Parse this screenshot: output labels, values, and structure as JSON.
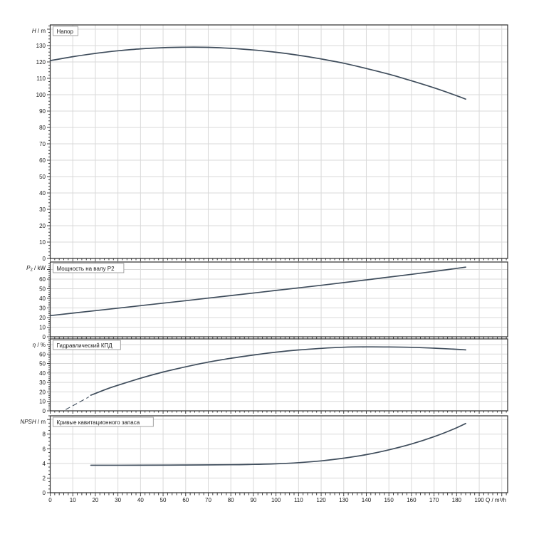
{
  "page": {
    "background": "#ffffff"
  },
  "colors": {
    "curve": "#3f4d5c",
    "grid": "#d9d9d9",
    "axis": "#2b2b2b",
    "text": "#1a1a1a",
    "title_border": "#8c8c8c",
    "title_fill": "#ffffff"
  },
  "xaxis": {
    "label": "Q / m³/h",
    "min": 0,
    "max": 202.6,
    "major_step": 10,
    "minor_step": 2,
    "label_max": 190
  },
  "chart_data": [
    {
      "type": "line",
      "panel": "head",
      "title": "Напор",
      "ylabel": {
        "var": "H",
        "sub": "",
        "unit": "m"
      },
      "ylim": [
        0,
        142.6
      ],
      "ytick_step": 10,
      "ytick_label_max": 130,
      "yminor_step": 2,
      "grid": true,
      "series": [
        {
          "name": "head-curve",
          "dashed": false,
          "points": [
            [
              0,
              120.8
            ],
            [
              10,
              123.2
            ],
            [
              20,
              125.2
            ],
            [
              30,
              126.8
            ],
            [
              40,
              128.0
            ],
            [
              50,
              128.7
            ],
            [
              60,
              129.0
            ],
            [
              70,
              128.9
            ],
            [
              80,
              128.3
            ],
            [
              90,
              127.3
            ],
            [
              100,
              125.9
            ],
            [
              110,
              124.1
            ],
            [
              120,
              121.8
            ],
            [
              130,
              119.2
            ],
            [
              140,
              116.0
            ],
            [
              150,
              112.5
            ],
            [
              160,
              108.5
            ],
            [
              170,
              104.2
            ],
            [
              180,
              99.4
            ],
            [
              184,
              97.3
            ]
          ]
        }
      ]
    },
    {
      "type": "line",
      "panel": "shaft-power",
      "title": "Мощность на валу P2",
      "ylabel": {
        "var": "P",
        "sub": "2",
        "unit": "kW"
      },
      "ylim": [
        0,
        77.8
      ],
      "ytick_step": 10,
      "ytick_label_max": 60,
      "yminor_step": 2,
      "grid": true,
      "series": [
        {
          "name": "shaft-power-curve",
          "dashed": false,
          "points": [
            [
              0,
              22.0
            ],
            [
              20,
              27.2
            ],
            [
              40,
              32.4
            ],
            [
              60,
              37.6
            ],
            [
              80,
              42.9
            ],
            [
              100,
              48.2
            ],
            [
              120,
              53.6
            ],
            [
              140,
              59.2
            ],
            [
              160,
              65.0
            ],
            [
              175,
              69.6
            ],
            [
              184,
              72.5
            ]
          ]
        }
      ]
    },
    {
      "type": "line",
      "panel": "hydraulic-efficiency",
      "title": "Гидравлический КПД",
      "ylabel": {
        "var": "η",
        "sub": "",
        "unit": "%"
      },
      "ylim": [
        0,
        76.0
      ],
      "ytick_step": 10,
      "ytick_label_max": 60,
      "yminor_step": 2,
      "grid": true,
      "series": [
        {
          "name": "efficiency-curve-dashed",
          "dashed": true,
          "points": [
            [
              7,
              1.5
            ],
            [
              12,
              8.0
            ],
            [
              17,
              14.5
            ]
          ]
        },
        {
          "name": "efficiency-curve",
          "dashed": false,
          "points": [
            [
              18,
              16.5
            ],
            [
              25,
              23.0
            ],
            [
              30,
              27.0
            ],
            [
              40,
              34.5
            ],
            [
              50,
              41.0
            ],
            [
              60,
              46.5
            ],
            [
              70,
              51.5
            ],
            [
              80,
              55.5
            ],
            [
              90,
              59.0
            ],
            [
              100,
              62.0
            ],
            [
              110,
              64.3
            ],
            [
              120,
              66.0
            ],
            [
              130,
              67.2
            ],
            [
              140,
              67.6
            ],
            [
              150,
              67.5
            ],
            [
              160,
              67.1
            ],
            [
              170,
              66.2
            ],
            [
              180,
              65.0
            ],
            [
              184,
              64.4
            ]
          ]
        }
      ]
    },
    {
      "type": "line",
      "panel": "npsh",
      "title": "Кривые кавитационного запаса",
      "ylabel": {
        "var": "NPSH",
        "sub": "",
        "unit": "m"
      },
      "ylim": [
        0,
        10.5
      ],
      "ytick_step": 2,
      "ytick_label_max": 8,
      "yminor_step": 0.5,
      "grid": true,
      "series": [
        {
          "name": "npsh-curve",
          "dashed": false,
          "points": [
            [
              18,
              3.75
            ],
            [
              40,
              3.75
            ],
            [
              60,
              3.78
            ],
            [
              80,
              3.82
            ],
            [
              90,
              3.87
            ],
            [
              100,
              3.95
            ],
            [
              110,
              4.1
            ],
            [
              120,
              4.35
            ],
            [
              130,
              4.72
            ],
            [
              140,
              5.2
            ],
            [
              150,
              5.85
            ],
            [
              160,
              6.65
            ],
            [
              170,
              7.65
            ],
            [
              178,
              8.6
            ],
            [
              184,
              9.45
            ]
          ]
        }
      ]
    }
  ]
}
